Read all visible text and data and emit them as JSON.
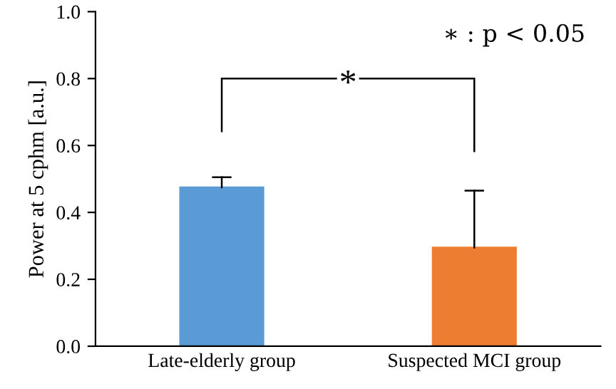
{
  "chart_data": {
    "type": "bar",
    "ylabel": "Power at 5 cphm [a.u.]",
    "categories": [
      "Late-elderly group",
      "Suspected MCI group"
    ],
    "values": [
      0.475,
      0.295
    ],
    "colors": [
      "#5b9bd5",
      "#ed7d31"
    ],
    "errors": [
      [
        0.475,
        0.505
      ],
      [
        0.295,
        0.465
      ]
    ],
    "ylim": [
      0,
      1.0
    ],
    "yticks": [
      {
        "value": 0,
        "label": "0.0"
      },
      {
        "value": 0.2,
        "label": "0.2"
      },
      {
        "value": 0.4,
        "label": "0.4"
      },
      {
        "value": 0.6,
        "label": "0.6"
      },
      {
        "value": 0.8,
        "label": "0.8"
      },
      {
        "value": 1.0,
        "label": "1.0"
      }
    ],
    "grid": false,
    "annotations": [
      "∗ : p < 0.05",
      "*"
    ]
  }
}
